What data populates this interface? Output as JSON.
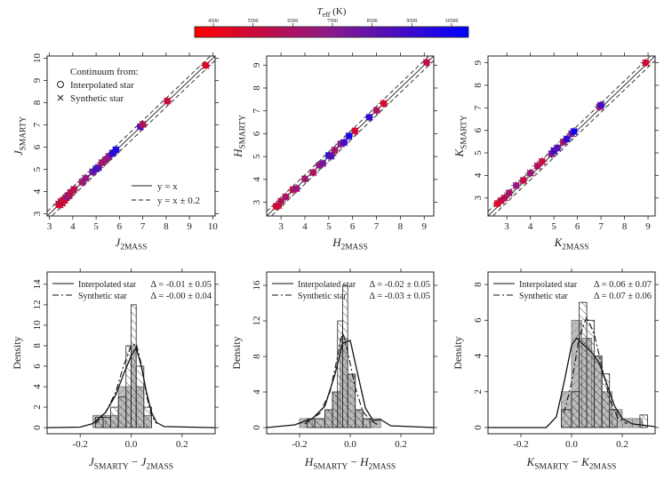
{
  "colorbar": {
    "label": "T_eff (K)",
    "label_main": "T",
    "label_sub": "eff",
    "label_unit": " (K)",
    "ticks": [
      "4500",
      "5500",
      "6500",
      "7500",
      "8500",
      "9500",
      "10500"
    ],
    "color_low": "#ff0000",
    "color_high": "#0000ff"
  },
  "chart_data": [
    {
      "type": "scatter",
      "name": "J",
      "xlabel_main": "J",
      "xlabel_sub": "2MASS",
      "ylabel_main": "J",
      "ylabel_sub": "SMARTY",
      "xlim": [
        2.9,
        10.1
      ],
      "ylim": [
        2.9,
        10.1
      ],
      "xticks": [
        3,
        4,
        5,
        6,
        7,
        8,
        9,
        10
      ],
      "yticks": [
        3,
        4,
        5,
        6,
        7,
        8,
        9,
        10
      ],
      "legend_top": {
        "title": "Continuum from:",
        "items": [
          {
            "marker": "circle",
            "label": "Interpolated star"
          },
          {
            "marker": "cross",
            "label": "Synthetic star"
          }
        ]
      },
      "legend_bottom": {
        "items": [
          {
            "line": "solid",
            "label": "y = x"
          },
          {
            "line": "dashed",
            "label": "y = x ± 0.2"
          }
        ]
      },
      "points": [
        [
          3.4,
          3.44,
          5200
        ],
        [
          3.45,
          3.4,
          4800
        ],
        [
          3.5,
          3.55,
          5600
        ],
        [
          3.55,
          3.48,
          6000
        ],
        [
          3.6,
          3.62,
          5300
        ],
        [
          3.65,
          3.6,
          4700
        ],
        [
          3.7,
          3.72,
          6300
        ],
        [
          3.78,
          3.8,
          7400
        ],
        [
          3.85,
          3.82,
          6800
        ],
        [
          3.9,
          3.95,
          5900
        ],
        [
          4.05,
          4.1,
          6100
        ],
        [
          4.4,
          4.42,
          6900
        ],
        [
          4.55,
          4.6,
          7200
        ],
        [
          4.85,
          4.88,
          8200
        ],
        [
          5.0,
          5.02,
          9400
        ],
        [
          5.1,
          5.08,
          8800
        ],
        [
          5.25,
          5.3,
          6500
        ],
        [
          5.4,
          5.42,
          7000
        ],
        [
          5.55,
          5.58,
          7600
        ],
        [
          5.7,
          5.72,
          9700
        ],
        [
          5.85,
          5.88,
          10200
        ],
        [
          6.9,
          6.92,
          9100
        ],
        [
          7.0,
          7.02,
          6200
        ],
        [
          8.05,
          8.07,
          5600
        ],
        [
          9.7,
          9.68,
          5000
        ]
      ]
    },
    {
      "type": "scatter",
      "name": "H",
      "xlabel_main": "H",
      "xlabel_sub": "2MASS",
      "ylabel_main": "H",
      "ylabel_sub": "SMARTY",
      "xlim": [
        2.4,
        9.4
      ],
      "ylim": [
        2.4,
        9.4
      ],
      "xticks": [
        3,
        4,
        5,
        6,
        7,
        8,
        9
      ],
      "yticks": [
        3,
        4,
        5,
        6,
        7,
        8,
        9
      ],
      "points": [
        [
          2.8,
          2.82,
          5100
        ],
        [
          2.9,
          2.86,
          5500
        ],
        [
          3.0,
          3.05,
          6200
        ],
        [
          3.2,
          3.24,
          6600
        ],
        [
          3.5,
          3.55,
          5800
        ],
        [
          3.65,
          3.6,
          7100
        ],
        [
          4.0,
          4.02,
          6900
        ],
        [
          4.35,
          4.3,
          6300
        ],
        [
          4.6,
          4.62,
          7300
        ],
        [
          4.75,
          4.7,
          8000
        ],
        [
          5.0,
          5.05,
          9800
        ],
        [
          5.1,
          5.02,
          8900
        ],
        [
          5.25,
          5.28,
          6700
        ],
        [
          5.5,
          5.55,
          7400
        ],
        [
          5.65,
          5.62,
          9300
        ],
        [
          5.85,
          5.9,
          10300
        ],
        [
          6.1,
          6.12,
          5400
        ],
        [
          6.7,
          6.72,
          9600
        ],
        [
          7.0,
          7.02,
          6400
        ],
        [
          7.3,
          7.32,
          5200
        ],
        [
          9.1,
          9.12,
          5700
        ]
      ]
    },
    {
      "type": "scatter",
      "name": "K",
      "xlabel_main": "K",
      "xlabel_sub": "2MASS",
      "ylabel_main": "K",
      "ylabel_sub": "SMARTY",
      "xlim": [
        2.2,
        9.3
      ],
      "ylim": [
        2.2,
        9.3
      ],
      "xticks": [
        3,
        4,
        5,
        6,
        7,
        8,
        9
      ],
      "yticks": [
        3,
        4,
        5,
        6,
        7,
        8,
        9
      ],
      "points": [
        [
          2.6,
          2.75,
          5000
        ],
        [
          2.75,
          2.88,
          5400
        ],
        [
          2.9,
          3.0,
          6000
        ],
        [
          3.1,
          3.22,
          6600
        ],
        [
          3.4,
          3.55,
          7200
        ],
        [
          3.7,
          3.78,
          5800
        ],
        [
          4.0,
          4.1,
          6900
        ],
        [
          4.3,
          4.42,
          6300
        ],
        [
          4.5,
          4.62,
          5600
        ],
        [
          4.9,
          4.95,
          7700
        ],
        [
          5.0,
          5.1,
          9500
        ],
        [
          5.15,
          5.22,
          8700
        ],
        [
          5.4,
          5.48,
          6800
        ],
        [
          5.55,
          5.62,
          9900
        ],
        [
          5.75,
          5.85,
          7600
        ],
        [
          5.85,
          5.95,
          10400
        ],
        [
          6.95,
          7.05,
          6500
        ],
        [
          7.0,
          7.12,
          9200
        ],
        [
          8.9,
          9.0,
          5300
        ]
      ]
    },
    {
      "type": "histogram",
      "name": "dJ",
      "xlabel_main": "J",
      "xlabel_sub": "SMARTY",
      "xlabel_mid": " − ",
      "xlabel2_main": "J",
      "xlabel2_sub": "2MASS",
      "ylabel": "Density",
      "xlim": [
        -0.33,
        0.33
      ],
      "ylim": [
        -0.6,
        15.2
      ],
      "xticks": [
        -0.2,
        0.0,
        0.2
      ],
      "yticks": [
        0,
        2,
        4,
        6,
        8,
        10,
        12,
        14
      ],
      "legend": {
        "items": [
          {
            "line": "solid",
            "label": "Interpolated star",
            "stat": "Δ = -0.01 ± 0.05"
          },
          {
            "line": "dashdot",
            "label": "Synthetic star",
            "stat": "Δ = -0.00 ± 0.04"
          }
        ]
      },
      "interpolated": {
        "bins": [
          [
            -0.15,
            -0.1,
            1.2
          ],
          [
            -0.1,
            -0.05,
            1.2
          ],
          [
            -0.05,
            -0.02,
            4.0
          ],
          [
            -0.02,
            0.0,
            4.0
          ],
          [
            0.0,
            0.02,
            8.0
          ],
          [
            0.02,
            0.05,
            4.0
          ],
          [
            0.05,
            0.08,
            1.2
          ]
        ],
        "kde": [
          [
            -0.33,
            0.0
          ],
          [
            -0.2,
            0.05
          ],
          [
            -0.15,
            0.4
          ],
          [
            -0.1,
            1.5
          ],
          [
            -0.06,
            3.2
          ],
          [
            -0.03,
            5.2
          ],
          [
            0.0,
            7.0
          ],
          [
            0.02,
            7.8
          ],
          [
            0.04,
            6.0
          ],
          [
            0.06,
            3.5
          ],
          [
            0.08,
            1.5
          ],
          [
            0.1,
            0.5
          ],
          [
            0.13,
            0.1
          ],
          [
            0.33,
            0.0
          ]
        ]
      },
      "synthetic": {
        "bins": [
          [
            -0.14,
            -0.11,
            1.0
          ],
          [
            -0.11,
            -0.08,
            1.0
          ],
          [
            -0.08,
            -0.05,
            2.0
          ],
          [
            -0.05,
            -0.02,
            3.0
          ],
          [
            -0.02,
            0.0,
            8.0
          ],
          [
            0.0,
            0.02,
            12.0
          ],
          [
            0.02,
            0.05,
            6.0
          ],
          [
            0.05,
            0.08,
            2.0
          ]
        ],
        "kde": [
          [
            -0.14,
            0.4
          ],
          [
            -0.1,
            1.5
          ],
          [
            -0.06,
            3.5
          ],
          [
            -0.03,
            6.0
          ],
          [
            0.0,
            8.0
          ],
          [
            0.02,
            8.2
          ],
          [
            0.04,
            6.2
          ],
          [
            0.06,
            3.2
          ],
          [
            0.08,
            1.2
          ],
          [
            0.1,
            0.4
          ]
        ]
      }
    },
    {
      "type": "histogram",
      "name": "dH",
      "xlabel_main": "H",
      "xlabel_sub": "SMARTY",
      "xlabel_mid": " − ",
      "xlabel2_main": "H",
      "xlabel2_sub": "2MASS",
      "ylabel": "Density",
      "xlim": [
        -0.33,
        0.33
      ],
      "ylim": [
        -0.7,
        17.5
      ],
      "xticks": [
        -0.2,
        0.0,
        0.2
      ],
      "yticks": [
        0,
        4,
        8,
        12,
        16
      ],
      "legend": {
        "items": [
          {
            "line": "solid",
            "label": "Interpolated star",
            "stat": "Δ = -0.02 ± 0.05"
          },
          {
            "line": "dashdot",
            "label": "Synthetic star",
            "stat": "Δ = -0.03 ± 0.05"
          }
        ]
      },
      "interpolated": {
        "bins": [
          [
            -0.2,
            -0.15,
            1.0
          ],
          [
            -0.15,
            -0.1,
            1.0
          ],
          [
            -0.1,
            -0.07,
            2.0
          ],
          [
            -0.07,
            -0.04,
            4.0
          ],
          [
            -0.04,
            -0.01,
            10.0
          ],
          [
            -0.01,
            0.02,
            6.0
          ],
          [
            0.02,
            0.05,
            2.0
          ],
          [
            0.05,
            0.08,
            1.0
          ],
          [
            0.08,
            0.12,
            1.0
          ]
        ],
        "kde": [
          [
            -0.33,
            0.0
          ],
          [
            -0.22,
            0.3
          ],
          [
            -0.15,
            1.0
          ],
          [
            -0.1,
            2.4
          ],
          [
            -0.06,
            6.0
          ],
          [
            -0.03,
            9.5
          ],
          [
            0.0,
            9.8
          ],
          [
            0.03,
            6.0
          ],
          [
            0.06,
            2.2
          ],
          [
            0.09,
            0.8
          ],
          [
            0.12,
            0.9
          ],
          [
            0.16,
            0.2
          ],
          [
            0.33,
            0.0
          ]
        ]
      },
      "synthetic": {
        "bins": [
          [
            -0.17,
            -0.14,
            1.0
          ],
          [
            -0.14,
            -0.1,
            1.0
          ],
          [
            -0.1,
            -0.07,
            2.0
          ],
          [
            -0.07,
            -0.05,
            4.0
          ],
          [
            -0.05,
            -0.03,
            12.0
          ],
          [
            -0.03,
            -0.01,
            16.0
          ],
          [
            -0.01,
            0.02,
            6.0
          ],
          [
            0.02,
            0.05,
            2.0
          ],
          [
            0.05,
            0.08,
            1.0
          ]
        ],
        "kde": [
          [
            -0.18,
            0.4
          ],
          [
            -0.12,
            1.6
          ],
          [
            -0.08,
            4.0
          ],
          [
            -0.05,
            8.0
          ],
          [
            -0.03,
            10.8
          ],
          [
            -0.01,
            8.5
          ],
          [
            0.02,
            4.5
          ],
          [
            0.05,
            1.8
          ],
          [
            0.08,
            0.8
          ],
          [
            0.11,
            0.3
          ]
        ]
      }
    },
    {
      "type": "histogram",
      "name": "dK",
      "xlabel_main": "K",
      "xlabel_sub": "SMARTY",
      "xlabel_mid": " − ",
      "xlabel2_main": "K",
      "xlabel2_sub": "2MASS",
      "ylabel": "Density",
      "xlim": [
        -0.33,
        0.33
      ],
      "ylim": [
        -0.35,
        8.7
      ],
      "xticks": [
        -0.2,
        0.0,
        0.2
      ],
      "yticks": [
        0,
        2,
        4,
        6,
        8
      ],
      "legend": {
        "items": [
          {
            "line": "solid",
            "label": "Interpolated star",
            "stat": "Δ = 0.06 ± 0.07"
          },
          {
            "line": "dashdot",
            "label": "Synthetic star",
            "stat": "Δ = 0.07 ± 0.06"
          }
        ]
      },
      "interpolated": {
        "bins": [
          [
            -0.04,
            0.0,
            2.0
          ],
          [
            0.0,
            0.04,
            6.0
          ],
          [
            0.04,
            0.08,
            5.0
          ],
          [
            0.08,
            0.12,
            4.0
          ],
          [
            0.12,
            0.16,
            2.0
          ],
          [
            0.16,
            0.2,
            1.0
          ],
          [
            0.2,
            0.24,
            0.5
          ],
          [
            0.24,
            0.28,
            0.5
          ]
        ],
        "kde": [
          [
            -0.33,
            0.0
          ],
          [
            -0.1,
            0.0
          ],
          [
            -0.06,
            0.6
          ],
          [
            -0.03,
            2.5
          ],
          [
            0.0,
            4.6
          ],
          [
            0.02,
            5.0
          ],
          [
            0.05,
            4.6
          ],
          [
            0.08,
            4.2
          ],
          [
            0.11,
            3.6
          ],
          [
            0.14,
            2.4
          ],
          [
            0.17,
            1.2
          ],
          [
            0.2,
            0.5
          ],
          [
            0.24,
            0.2
          ],
          [
            0.33,
            0.05
          ]
        ]
      },
      "synthetic": {
        "bins": [
          [
            -0.04,
            0.0,
            1.0
          ],
          [
            0.0,
            0.03,
            2.0
          ],
          [
            0.03,
            0.06,
            7.0
          ],
          [
            0.06,
            0.09,
            6.0
          ],
          [
            0.09,
            0.12,
            4.0
          ],
          [
            0.12,
            0.15,
            3.0
          ],
          [
            0.15,
            0.18,
            1.0
          ],
          [
            0.27,
            0.3,
            0.7
          ]
        ],
        "kde": [
          [
            -0.03,
            0.8
          ],
          [
            0.0,
            2.5
          ],
          [
            0.03,
            5.0
          ],
          [
            0.06,
            6.2
          ],
          [
            0.09,
            5.2
          ],
          [
            0.12,
            3.4
          ],
          [
            0.15,
            1.6
          ],
          [
            0.18,
            0.6
          ],
          [
            0.22,
            0.2
          ]
        ]
      }
    }
  ]
}
